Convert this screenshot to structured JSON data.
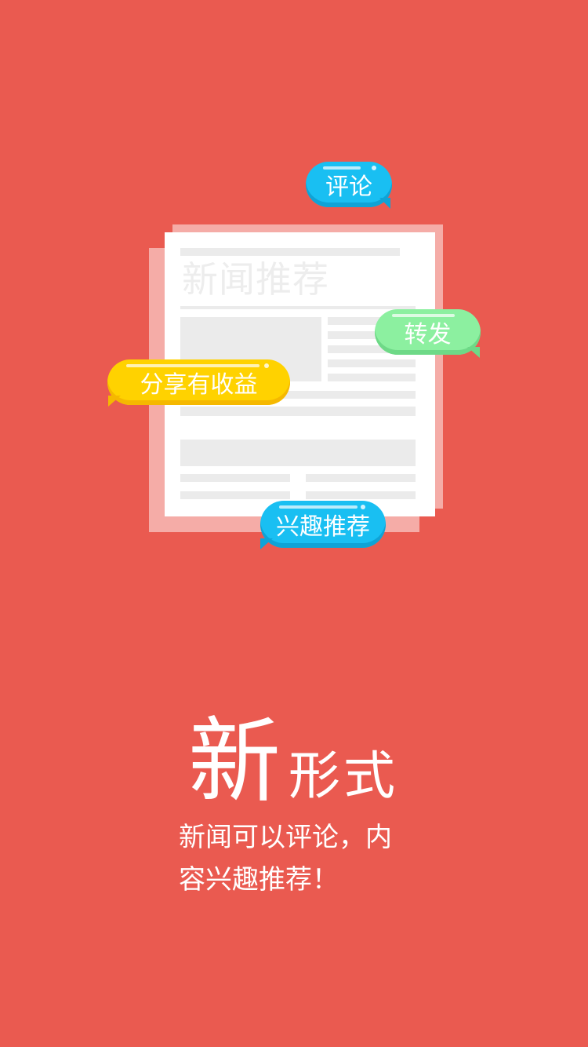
{
  "illustration": {
    "doc_title": "新闻推荐",
    "bubbles": {
      "comment": "评论",
      "forward": "转发",
      "share": "分享有收益",
      "interest": "兴趣推荐"
    }
  },
  "headline": {
    "big": "新",
    "small": "形式"
  },
  "description": {
    "line1": "新闻可以评论，内",
    "line2": "容兴趣推荐！"
  },
  "colors": {
    "background": "#EA5A50",
    "bubble_blue": "#19BFF2",
    "bubble_green": "#8CF0A0",
    "bubble_yellow": "#FFD200"
  }
}
